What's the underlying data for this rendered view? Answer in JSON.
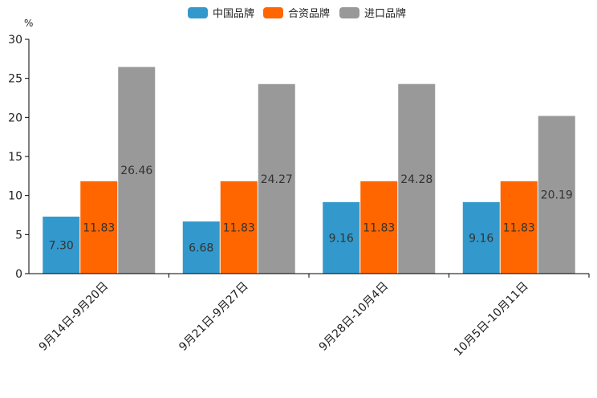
{
  "chart_data": {
    "type": "bar",
    "title": "",
    "ylabel": "%",
    "xlabel": "",
    "ylim": [
      0,
      30
    ],
    "yticks": [
      0,
      5,
      10,
      15,
      20,
      25,
      30
    ],
    "categories": [
      "9月14日-9月20日",
      "9月21日-9月27日",
      "9月28日-10月4日",
      "10月5日-10月11日"
    ],
    "series": [
      {
        "name": "中国品牌",
        "color": "#3399cc",
        "values": [
          7.3,
          6.68,
          9.16,
          9.16
        ],
        "labels": [
          "7.30",
          "6.68",
          "9.16",
          "9.16"
        ]
      },
      {
        "name": "合资品牌",
        "color": "#ff6600",
        "values": [
          11.83,
          11.83,
          11.83,
          11.83
        ],
        "labels": [
          "11.83",
          "11.83",
          "11.83",
          "11.83"
        ]
      },
      {
        "name": "进口品牌",
        "color": "#999999",
        "values": [
          26.46,
          24.27,
          24.28,
          20.19
        ],
        "labels": [
          "26.46",
          "24.27",
          "24.28",
          "20.19"
        ]
      }
    ],
    "legend_position": "top-center",
    "grid": false
  }
}
